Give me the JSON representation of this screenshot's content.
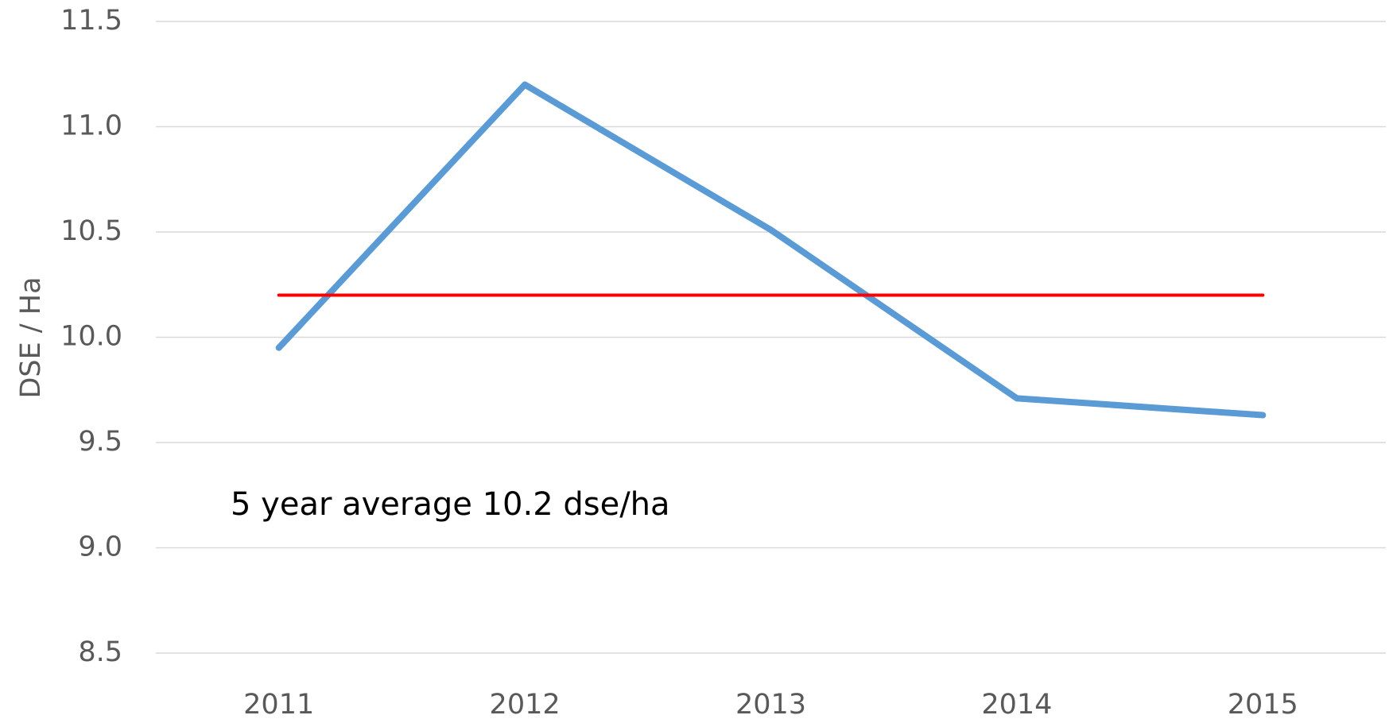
{
  "chart_data": {
    "type": "line",
    "categories": [
      "2011",
      "2012",
      "2013",
      "2014",
      "2015"
    ],
    "series": [
      {
        "color": "#5b9bd5",
        "values": [
          9.95,
          11.2,
          10.51,
          9.71,
          9.63
        ]
      },
      {
        "color": "#ff0000",
        "values": [
          10.2,
          10.2,
          10.2,
          10.2,
          10.2
        ]
      }
    ],
    "ylabel": "DSE / Ha",
    "annotation": "5 year average  10.2 dse/ha",
    "ylim": [
      8.5,
      11.5
    ],
    "yticks": [
      8.5,
      {
        "value": 9,
        "label": "9.0"
      },
      9.5,
      {
        "value": 10,
        "label": "10.0"
      },
      10.5,
      {
        "value": 11,
        "label": "11.0"
      },
      11.5
    ],
    "grid": true
  }
}
